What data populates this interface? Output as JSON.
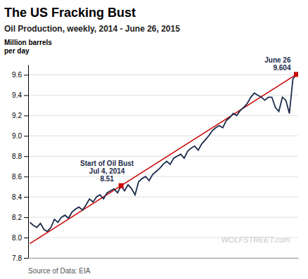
{
  "chart_data": {
    "type": "line",
    "title": "The US Fracking Bust",
    "subtitle": "Oil Production, weekly, 2014 - June 26, 2015",
    "ylabel": "Million barrels\nper day",
    "source": "Source of Data: EIA",
    "watermark": "WOLFSTREET.com",
    "x": [
      0,
      1,
      2,
      3,
      4,
      5,
      6,
      7,
      8,
      9,
      10,
      11,
      12,
      13,
      14,
      15,
      16,
      17,
      18,
      19,
      20,
      21,
      22,
      23,
      24,
      25,
      26,
      27,
      28,
      29,
      30,
      31,
      32,
      33,
      34,
      35,
      36,
      37,
      38,
      39,
      40,
      41,
      42,
      43,
      44,
      45,
      46,
      47,
      48,
      49,
      50,
      51,
      52,
      53,
      54,
      55,
      56,
      57,
      58,
      59,
      60,
      61,
      62,
      63,
      64,
      65,
      66,
      67,
      68,
      69,
      70,
      71,
      72,
      73,
      74,
      75,
      76
    ],
    "xlim": [
      -0.5,
      76.5
    ],
    "ylim": [
      7.8,
      9.7
    ],
    "yticks": [
      7.8,
      {
        "value": 8.0,
        "label": "8.0"
      },
      8.2,
      8.4,
      8.6,
      8.8,
      {
        "value": 9.0,
        "label": "9.0"
      },
      9.2,
      9.4,
      9.6
    ],
    "grid": true,
    "tick_labels": "y",
    "series": [
      {
        "color": "#1a2a4a",
        "values": [
          8.15,
          8.12,
          8.1,
          8.14,
          8.08,
          8.06,
          8.1,
          8.18,
          8.15,
          8.2,
          8.22,
          8.19,
          8.25,
          8.28,
          8.3,
          8.27,
          8.32,
          8.38,
          8.35,
          8.4,
          8.42,
          8.38,
          8.44,
          8.46,
          8.48,
          8.44,
          8.51,
          8.46,
          8.52,
          8.48,
          8.42,
          8.55,
          8.58,
          8.6,
          8.56,
          8.62,
          8.65,
          8.68,
          8.72,
          8.75,
          8.72,
          8.78,
          8.8,
          8.82,
          8.78,
          8.85,
          8.88,
          8.9,
          8.86,
          8.92,
          8.96,
          9.0,
          9.05,
          9.08,
          9.1,
          9.08,
          9.15,
          9.18,
          9.22,
          9.2,
          9.25,
          9.28,
          9.32,
          9.38,
          9.42,
          9.4,
          9.38,
          9.35,
          9.38,
          9.38,
          9.28,
          9.24,
          9.38,
          9.35,
          9.22,
          9.56,
          9.604
        ]
      },
      {
        "type": "line",
        "color": "#cc0000",
        "x": [
          0,
          76
        ],
        "values": [
          7.94112,
          9.604
        ]
      },
      {
        "type": "scatter",
        "marker": "square",
        "color": "#cc0000",
        "x": [
          26,
          76
        ],
        "values": [
          8.51,
          9.604
        ]
      }
    ],
    "annotations": [
      {
        "x": 26,
        "y": 8.51,
        "text": "Start of Oil Bust\nJul 4, 2014\n8.51"
      },
      {
        "x": 76,
        "y": 9.604,
        "text": "June 26\n9.604"
      }
    ]
  }
}
